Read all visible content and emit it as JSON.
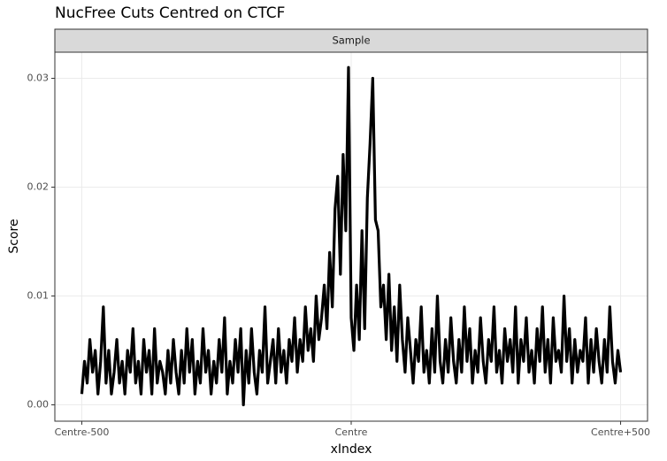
{
  "chart_data": {
    "type": "line",
    "title": "NucFree Cuts Centred on CTCF",
    "facet": "Sample",
    "x_label": "xIndex",
    "y_label": "Score",
    "color": "#000000",
    "grid": true,
    "xlim": [
      -550,
      550
    ],
    "xticks": [
      {
        "value": -500,
        "label": "Centre-500"
      },
      {
        "value": 0,
        "label": "Centre"
      },
      {
        "value": 500,
        "label": "Centre+500"
      }
    ],
    "ylim": [
      -0.0015,
      0.0324
    ],
    "yticks": [
      {
        "value": 0,
        "label": "0.00"
      },
      0.01,
      0.02,
      0.03
    ],
    "x": [
      -500,
      -495,
      -490,
      -485,
      -480,
      -475,
      -470,
      -465,
      -460,
      -455,
      -450,
      -445,
      -440,
      -435,
      -430,
      -425,
      -420,
      -415,
      -410,
      -405,
      -400,
      -395,
      -390,
      -385,
      -380,
      -375,
      -370,
      -365,
      -360,
      -355,
      -350,
      -345,
      -340,
      -335,
      -330,
      -325,
      -320,
      -315,
      -310,
      -305,
      -300,
      -295,
      -290,
      -285,
      -280,
      -275,
      -270,
      -265,
      -260,
      -255,
      -250,
      -245,
      -240,
      -235,
      -230,
      -225,
      -220,
      -215,
      -210,
      -205,
      -200,
      -195,
      -190,
      -185,
      -180,
      -175,
      -170,
      -165,
      -160,
      -155,
      -150,
      -145,
      -140,
      -135,
      -130,
      -125,
      -120,
      -115,
      -110,
      -105,
      -100,
      -95,
      -90,
      -85,
      -80,
      -75,
      -70,
      -65,
      -60,
      -55,
      -50,
      -45,
      -40,
      -35,
      -30,
      -25,
      -20,
      -15,
      -10,
      -5,
      0,
      5,
      10,
      15,
      20,
      25,
      30,
      35,
      40,
      45,
      50,
      55,
      60,
      65,
      70,
      75,
      80,
      85,
      90,
      95,
      100,
      105,
      110,
      115,
      120,
      125,
      130,
      135,
      140,
      145,
      150,
      155,
      160,
      165,
      170,
      175,
      180,
      185,
      190,
      195,
      200,
      205,
      210,
      215,
      220,
      225,
      230,
      235,
      240,
      245,
      250,
      255,
      260,
      265,
      270,
      275,
      280,
      285,
      290,
      295,
      300,
      305,
      310,
      315,
      320,
      325,
      330,
      335,
      340,
      345,
      350,
      355,
      360,
      365,
      370,
      375,
      380,
      385,
      390,
      395,
      400,
      405,
      410,
      415,
      420,
      425,
      430,
      435,
      440,
      445,
      450,
      455,
      460,
      465,
      470,
      475,
      480,
      485,
      490,
      495,
      500
    ],
    "values": [
      0.001,
      0.004,
      0.002,
      0.006,
      0.003,
      0.005,
      0.001,
      0.004,
      0.009,
      0.002,
      0.005,
      0.001,
      0.003,
      0.006,
      0.002,
      0.004,
      0.001,
      0.005,
      0.003,
      0.007,
      0.002,
      0.004,
      0.001,
      0.006,
      0.003,
      0.005,
      0.001,
      0.007,
      0.002,
      0.004,
      0.003,
      0.001,
      0.005,
      0.002,
      0.006,
      0.003,
      0.001,
      0.005,
      0.002,
      0.007,
      0.003,
      0.006,
      0.001,
      0.004,
      0.002,
      0.007,
      0.003,
      0.005,
      0.001,
      0.004,
      0.002,
      0.006,
      0.003,
      0.008,
      0.001,
      0.004,
      0.002,
      0.006,
      0.003,
      0.007,
      0.0,
      0.005,
      0.002,
      0.007,
      0.003,
      0.001,
      0.005,
      0.003,
      0.009,
      0.002,
      0.004,
      0.006,
      0.002,
      0.007,
      0.003,
      0.005,
      0.002,
      0.006,
      0.004,
      0.008,
      0.003,
      0.006,
      0.004,
      0.009,
      0.005,
      0.007,
      0.004,
      0.01,
      0.006,
      0.008,
      0.011,
      0.007,
      0.014,
      0.009,
      0.018,
      0.021,
      0.012,
      0.023,
      0.016,
      0.031,
      0.008,
      0.005,
      0.011,
      0.006,
      0.016,
      0.007,
      0.019,
      0.024,
      0.03,
      0.017,
      0.016,
      0.009,
      0.011,
      0.006,
      0.012,
      0.005,
      0.009,
      0.004,
      0.011,
      0.006,
      0.003,
      0.008,
      0.005,
      0.002,
      0.006,
      0.004,
      0.009,
      0.003,
      0.005,
      0.002,
      0.007,
      0.003,
      0.01,
      0.004,
      0.002,
      0.006,
      0.003,
      0.008,
      0.004,
      0.002,
      0.006,
      0.003,
      0.009,
      0.004,
      0.007,
      0.002,
      0.005,
      0.003,
      0.008,
      0.004,
      0.002,
      0.006,
      0.004,
      0.009,
      0.003,
      0.005,
      0.002,
      0.007,
      0.004,
      0.006,
      0.003,
      0.009,
      0.002,
      0.006,
      0.004,
      0.008,
      0.003,
      0.005,
      0.002,
      0.007,
      0.004,
      0.009,
      0.003,
      0.006,
      0.002,
      0.008,
      0.004,
      0.005,
      0.003,
      0.01,
      0.004,
      0.007,
      0.002,
      0.006,
      0.003,
      0.005,
      0.004,
      0.008,
      0.002,
      0.006,
      0.003,
      0.007,
      0.004,
      0.002,
      0.006,
      0.003,
      0.009,
      0.004,
      0.002,
      0.005,
      0.003
    ]
  }
}
